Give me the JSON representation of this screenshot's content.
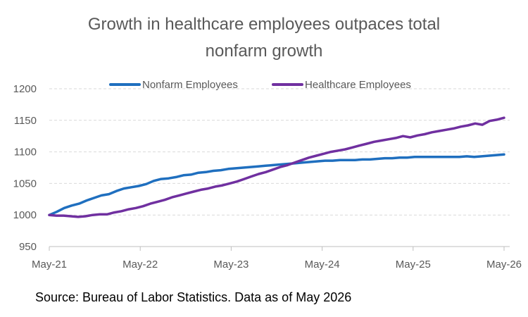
{
  "chart_data": {
    "type": "line",
    "title_lines": [
      "Growth in healthcare employees outpaces total",
      "nonfarm growth"
    ],
    "xlabel": "",
    "ylabel": "",
    "x_ticks": [
      "May-21",
      "May-22",
      "May-23",
      "May-24",
      "May-25",
      "May-26"
    ],
    "x_months_per_tick": 12,
    "y_ticks": [
      950,
      1000,
      1050,
      1100,
      1150,
      1200
    ],
    "ylim": [
      950,
      1200
    ],
    "grid": "horizontal dashed",
    "legend_position": "top-center",
    "series": [
      {
        "name": "Nonfarm Employees",
        "color": "#1F6FBF",
        "values": [
          1000,
          1005,
          1011,
          1015,
          1018,
          1023,
          1027,
          1031,
          1033,
          1038,
          1042,
          1044,
          1046,
          1049,
          1054,
          1057,
          1058,
          1060,
          1063,
          1064,
          1067,
          1068,
          1070,
          1071,
          1073,
          1074,
          1075,
          1076,
          1077,
          1078,
          1079,
          1080,
          1081,
          1082,
          1083,
          1084,
          1085,
          1086,
          1086,
          1087,
          1087,
          1087,
          1088,
          1088,
          1089,
          1090,
          1090,
          1091,
          1091,
          1092,
          1092,
          1092,
          1092,
          1092,
          1092,
          1092,
          1093,
          1092,
          1093,
          1094,
          1095,
          1096
        ]
      },
      {
        "name": "Healthcare Employees",
        "color": "#7030A0",
        "values": [
          1000,
          999,
          999,
          998,
          997,
          998,
          1000,
          1001,
          1001,
          1004,
          1006,
          1009,
          1011,
          1014,
          1018,
          1021,
          1024,
          1028,
          1031,
          1034,
          1037,
          1040,
          1042,
          1045,
          1047,
          1050,
          1053,
          1057,
          1061,
          1065,
          1068,
          1072,
          1076,
          1079,
          1083,
          1087,
          1091,
          1094,
          1097,
          1100,
          1102,
          1104,
          1107,
          1110,
          1113,
          1116,
          1118,
          1120,
          1122,
          1125,
          1123,
          1126,
          1128,
          1131,
          1133,
          1135,
          1137,
          1140,
          1142,
          1145,
          1143,
          1149,
          1151,
          1154
        ]
      }
    ]
  },
  "source_note": "Source: Bureau of Labor Statistics. Data as of May 2026"
}
